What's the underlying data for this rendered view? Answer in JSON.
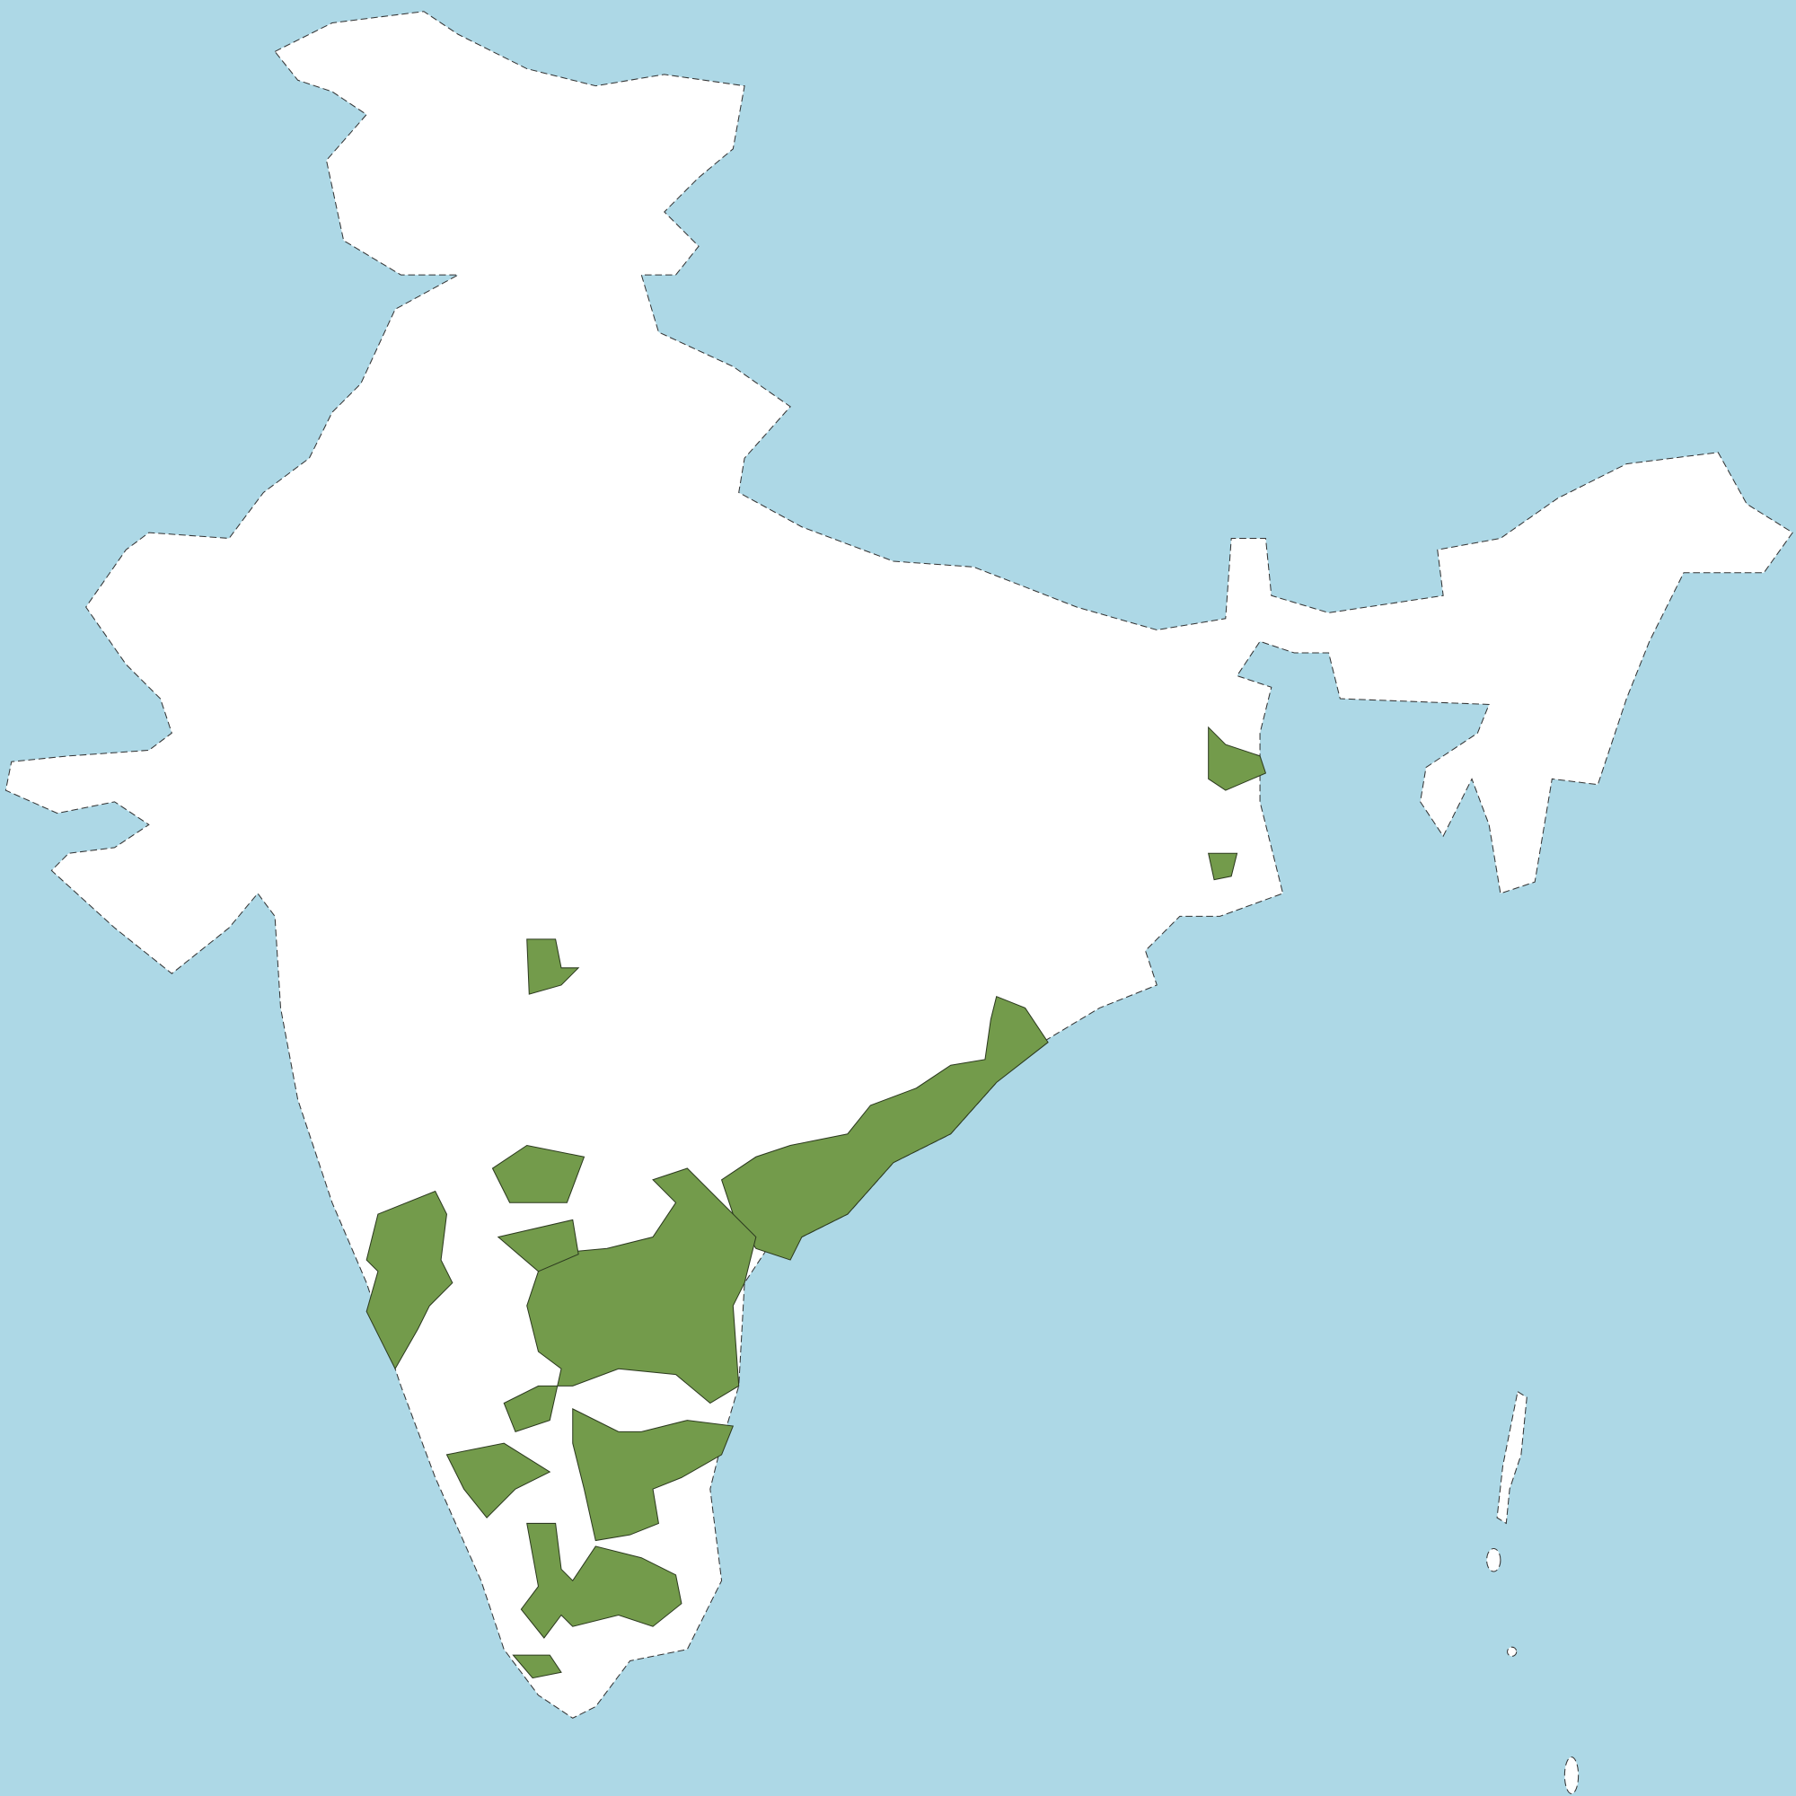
{
  "map": {
    "colors": {
      "water": "#add8e6",
      "land": "#ffffff",
      "highlight": "#739b4b",
      "border": "#333333"
    }
  }
}
